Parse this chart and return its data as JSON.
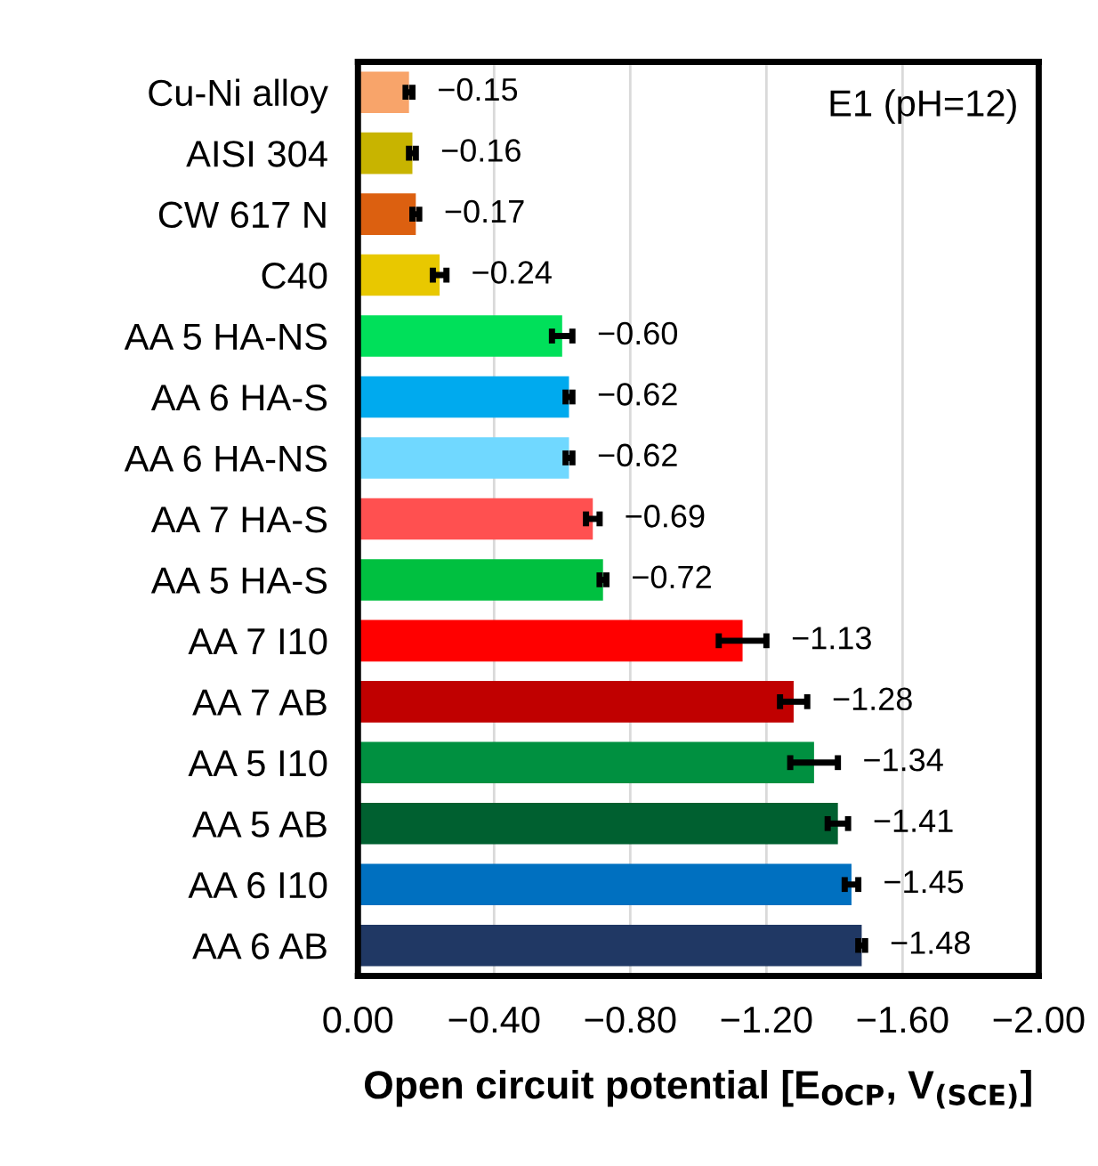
{
  "chart_data": {
    "type": "bar",
    "orientation": "horizontal",
    "xlabel": "Open circuit potential [E$_{OCP}$, V$_{(SCE)}$]",
    "annotations": [
      "E1 (pH=12)"
    ],
    "categories": [
      "Cu-Ni alloy",
      "AISI 304",
      "CW 617 N",
      "C40",
      "AA 5 HA-NS",
      "AA 6 HA-S",
      "AA 6 HA-NS",
      "AA 7 HA-S",
      "AA 5 HA-S",
      "AA 7 I10",
      "AA 7 AB",
      "AA 5 I10",
      "AA 5 AB",
      "AA 6 I10",
      "AA 6 AB"
    ],
    "values": [
      -0.15,
      -0.16,
      -0.17,
      -0.24,
      -0.6,
      -0.62,
      -0.62,
      -0.69,
      -0.72,
      -1.13,
      -1.28,
      -1.34,
      -1.41,
      -1.45,
      -1.48
    ],
    "errors": [
      0.01,
      0.01,
      0.01,
      0.02,
      0.03,
      0.01,
      0.01,
      0.02,
      0.01,
      0.07,
      0.04,
      0.07,
      0.03,
      0.02,
      0.01
    ],
    "value_labels": [
      "−0.15",
      "−0.16",
      "−0.17",
      "−0.24",
      "−0.60",
      "−0.62",
      "−0.62",
      "−0.69",
      "−0.72",
      "−1.13",
      "−1.28",
      "−1.34",
      "−1.41",
      "−1.45",
      "−1.48"
    ],
    "colors": [
      "#f8a46a",
      "#c8b400",
      "#dc6010",
      "#e8c800",
      "#00e05a",
      "#00aaee",
      "#70d8ff",
      "#ff5050",
      "#00c040",
      "#ff0000",
      "#c00000",
      "#009040",
      "#006030",
      "#0070c0",
      "#203864"
    ],
    "xlim": [
      0,
      -2
    ],
    "xticks": [
      {
        "value": 0,
        "label": "0.00"
      },
      {
        "value": -0.4,
        "label": "−0.40"
      },
      {
        "value": -0.8,
        "label": "−0.80"
      },
      {
        "value": -1.2,
        "label": "−1.20"
      },
      {
        "value": -1.6,
        "label": "−1.60"
      },
      {
        "value": -2,
        "label": "−2.00"
      }
    ],
    "grid": "x"
  }
}
